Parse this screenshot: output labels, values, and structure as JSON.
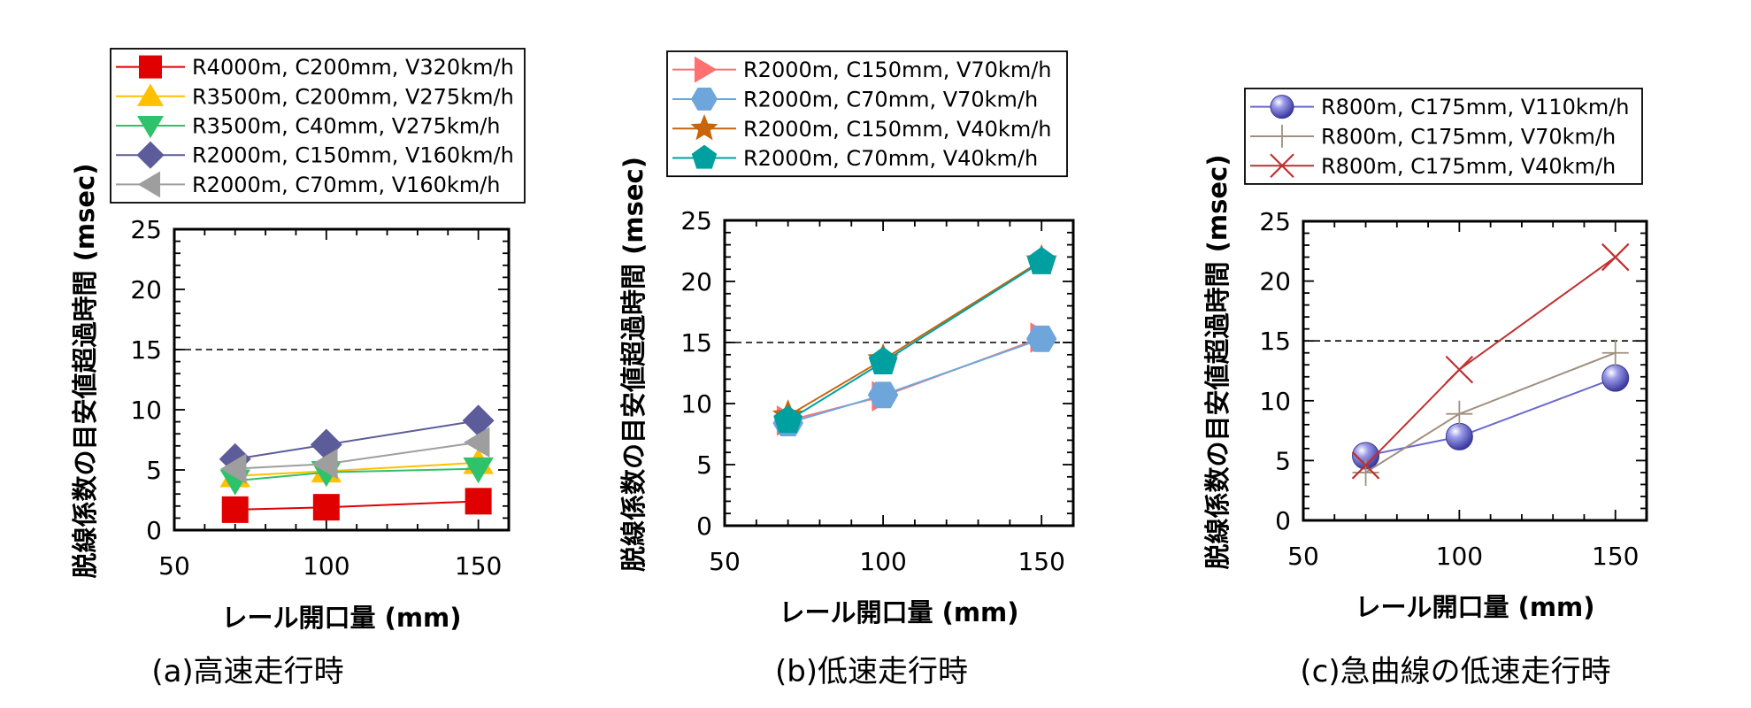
{
  "figure": {
    "captions": [
      "(a)高速走行時",
      "(b)低速走行時",
      "(c)急曲線の低速走行時"
    ]
  },
  "chart_data": [
    {
      "type": "line",
      "title": "(a)高速走行時",
      "xlabel": "レール開口量 (mm)",
      "ylabel": "脱線係数の目安値超過時間 (msec)",
      "xlim": [
        50,
        160
      ],
      "ylim": [
        0,
        25
      ],
      "xticks": [
        50,
        100,
        150
      ],
      "yticks": [
        0,
        5,
        10,
        15,
        20,
        25
      ],
      "threshold": 15,
      "legend_position": "top",
      "series": [
        {
          "name": "R4000m, C200mm, V320km/h",
          "x": [
            70,
            100,
            150
          ],
          "y": [
            1.7,
            1.9,
            2.4
          ],
          "marker": "square",
          "color": "#e00000"
        },
        {
          "name": "R3500m, C200mm, V275km/h",
          "x": [
            70,
            100,
            150
          ],
          "y": [
            4.5,
            4.9,
            5.6
          ],
          "marker": "triangle-up",
          "color": "#ffc000"
        },
        {
          "name": "R3500m, C40mm, V275km/h",
          "x": [
            70,
            100,
            150
          ],
          "y": [
            4.1,
            4.8,
            5.1
          ],
          "marker": "triangle-down",
          "color": "#2ec26a"
        },
        {
          "name": "R2000m, C150mm, V160km/h",
          "x": [
            70,
            100,
            150
          ],
          "y": [
            5.9,
            7.1,
            9.1
          ],
          "marker": "diamond",
          "color": "#5c5c9a"
        },
        {
          "name": "R2000m, C70mm, V160km/h",
          "x": [
            70,
            100,
            150
          ],
          "y": [
            5.1,
            5.5,
            7.3
          ],
          "marker": "triangle-left",
          "color": "#9e9e9e"
        }
      ]
    },
    {
      "type": "line",
      "title": "(b)低速走行時",
      "xlabel": "レール開口量 (mm)",
      "ylabel": "脱線係数の目安値超過時間 (msec)",
      "xlim": [
        50,
        160
      ],
      "ylim": [
        0,
        25
      ],
      "xticks": [
        50,
        100,
        150
      ],
      "yticks": [
        0,
        5,
        10,
        15,
        20,
        25
      ],
      "threshold": 15,
      "legend_position": "top",
      "series": [
        {
          "name": "R2000m, C150mm, V70km/h",
          "x": [
            70,
            100,
            150
          ],
          "y": [
            8.6,
            10.6,
            15.4
          ],
          "marker": "triangle-right",
          "color": "#ff7070"
        },
        {
          "name": "R2000m, C70mm, V70km/h",
          "x": [
            70,
            100,
            150
          ],
          "y": [
            8.4,
            10.7,
            15.3
          ],
          "marker": "hexagon",
          "color": "#6ea6dc"
        },
        {
          "name": "R2000m, C150mm, V40km/h",
          "x": [
            70,
            100,
            150
          ],
          "y": [
            9.0,
            13.6,
            21.7
          ],
          "marker": "star",
          "color": "#c8640a"
        },
        {
          "name": "R2000m, C70mm, V40km/h",
          "x": [
            70,
            100,
            150
          ],
          "y": [
            8.6,
            13.4,
            21.6
          ],
          "marker": "pentagon",
          "color": "#00a0a0"
        }
      ]
    },
    {
      "type": "line",
      "title": "(c)急曲線の低速走行時",
      "xlabel": "レール開口量 (mm)",
      "ylabel": "脱線係数の目安値超過時間 (msec)",
      "xlim": [
        50,
        160
      ],
      "ylim": [
        0,
        25
      ],
      "xticks": [
        50,
        100,
        150
      ],
      "yticks": [
        0,
        5,
        10,
        15,
        20,
        25
      ],
      "threshold": 15,
      "legend_position": "top",
      "series": [
        {
          "name": "R800m, C175mm, V110km/h",
          "x": [
            70,
            100,
            150
          ],
          "y": [
            5.4,
            7.0,
            11.9
          ],
          "marker": "sphere",
          "color": "#6a6ad0"
        },
        {
          "name": "R800m, C175mm, V70km/h",
          "x": [
            70,
            100,
            150
          ],
          "y": [
            4.0,
            8.9,
            14.0
          ],
          "marker": "plus",
          "color": "#a09080"
        },
        {
          "name": "R800m, C175mm, V40km/h",
          "x": [
            70,
            100,
            150
          ],
          "y": [
            4.6,
            12.6,
            22.0
          ],
          "marker": "cross",
          "color": "#c03030"
        }
      ]
    }
  ]
}
